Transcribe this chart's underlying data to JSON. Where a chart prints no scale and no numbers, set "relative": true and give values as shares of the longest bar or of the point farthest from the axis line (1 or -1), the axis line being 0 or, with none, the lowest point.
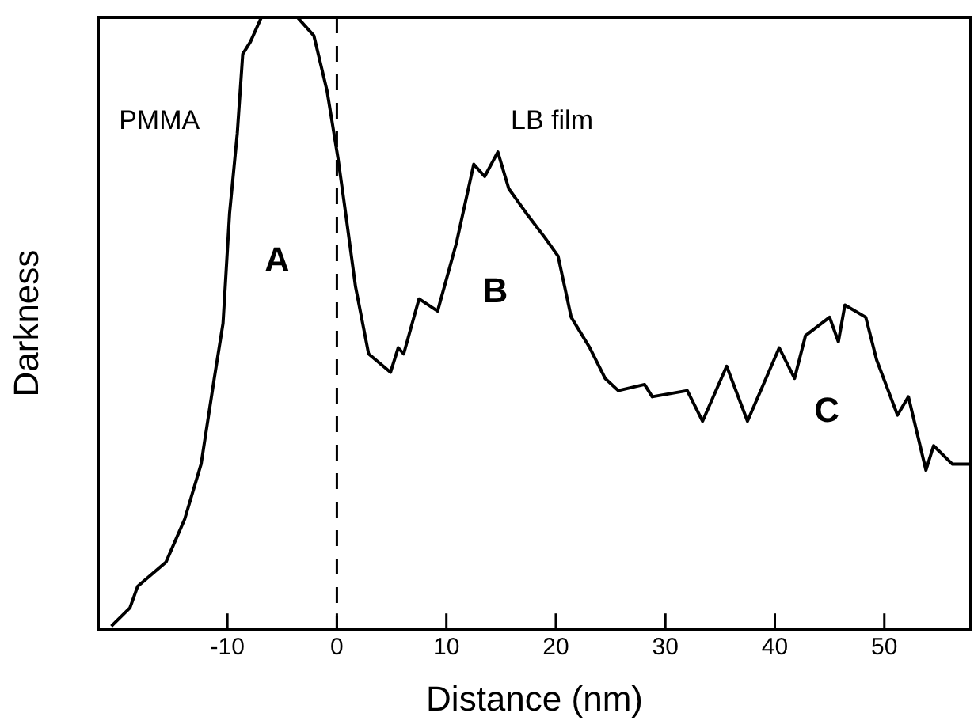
{
  "chart_data": {
    "type": "line",
    "xlabel": "Distance (nm)",
    "ylabel": "Darkness",
    "relative": true,
    "grid": false,
    "legend": false,
    "marker": "none",
    "line_style": "solid",
    "xlim": [
      -21.8,
      57.9
    ],
    "xticks": [
      -10,
      0,
      10,
      20,
      30,
      40,
      50
    ],
    "series": [
      {
        "color": "#000000",
        "x": [
          -20.6,
          -18.9,
          -18.2,
          -15.6,
          -13.9,
          -12.4,
          -11.2,
          -10.4,
          -9.8,
          -9.1,
          -8.6,
          -7.9,
          -6.9,
          -3.6,
          -2.1,
          -0.9,
          0.1,
          0.8,
          1.7,
          2.9,
          4.9,
          5.6,
          6.1,
          7.5,
          9.2,
          10.9,
          12.5,
          13.5,
          14.7,
          15.7,
          17.3,
          19.0,
          20.2,
          21.4,
          23.1,
          24.5,
          25.7,
          28.1,
          28.8,
          32.0,
          33.4,
          35.6,
          37.5,
          40.4,
          41.8,
          42.8,
          45.0,
          45.8,
          46.4,
          48.3,
          49.3,
          51.2,
          52.2,
          53.8,
          54.5,
          56.2,
          57.9
        ],
        "values": [
          0.005,
          0.035,
          0.07,
          0.11,
          0.18,
          0.27,
          0.41,
          0.5,
          0.68,
          0.81,
          0.94,
          0.96,
          1,
          1,
          0.97,
          0.88,
          0.77,
          0.68,
          0.56,
          0.45,
          0.42,
          0.46,
          0.45,
          0.54,
          0.52,
          0.63,
          0.76,
          0.74,
          0.78,
          0.72,
          0.68,
          0.64,
          0.61,
          0.51,
          0.46,
          0.41,
          0.39,
          0.4,
          0.38,
          0.39,
          0.34,
          0.43,
          0.34,
          0.46,
          0.41,
          0.48,
          0.51,
          0.47,
          0.53,
          0.51,
          0.44,
          0.35,
          0.38,
          0.26,
          0.3,
          0.27,
          0.27
        ]
      }
    ],
    "ref_lines": [
      {
        "axis": "x",
        "value": 0,
        "color": "#000000",
        "line_style": "dashed"
      }
    ],
    "annotations": [
      "PMMA",
      "LB film",
      "A",
      "B",
      "C"
    ]
  }
}
